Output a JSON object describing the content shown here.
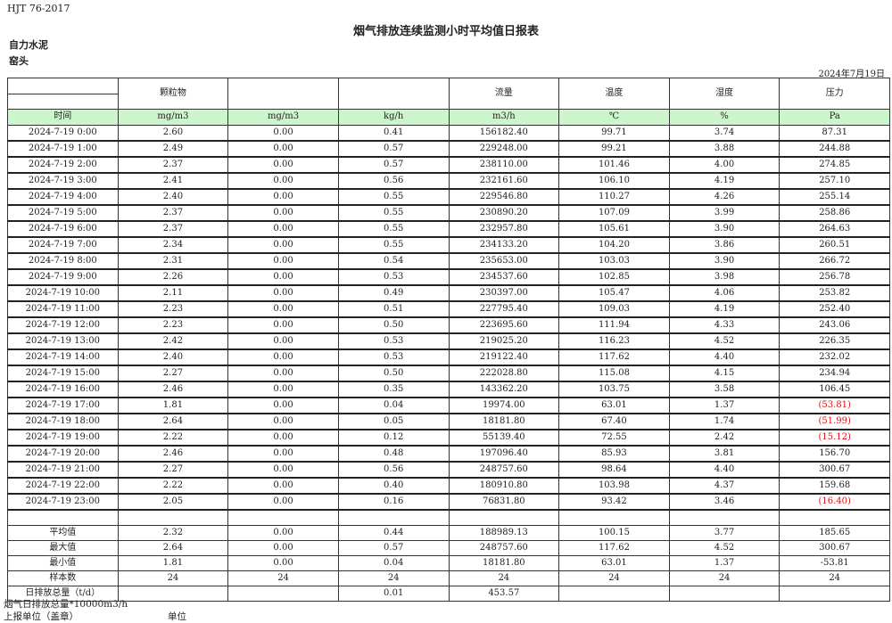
{
  "standard": "HJT  76-2017",
  "title": "烟气排放连续监测小时平均值日报表",
  "company": "自力水泥",
  "location": "窑头",
  "report_date": "2024年7月19日",
  "colors": {
    "unit_row_bg": "#ccf5cc",
    "negative": "#e01010"
  },
  "headers": [
    "",
    "颗粒物",
    "",
    "",
    "流量",
    "温度",
    "湿度",
    "压力"
  ],
  "units": [
    "时间",
    "mg/m3",
    "mg/m3",
    "kg/h",
    "m3/h",
    "℃",
    "%",
    "Pa"
  ],
  "rows": [
    [
      "2024-7-19 0:00",
      "2.60",
      "0.00",
      "0.41",
      "156182.40",
      "99.71",
      "3.74",
      "87.31"
    ],
    [
      "2024-7-19 1:00",
      "2.49",
      "0.00",
      "0.57",
      "229248.00",
      "99.21",
      "3.88",
      "244.88"
    ],
    [
      "2024-7-19 2:00",
      "2.37",
      "0.00",
      "0.57",
      "238110.00",
      "101.46",
      "4.00",
      "274.85"
    ],
    [
      "2024-7-19 3:00",
      "2.41",
      "0.00",
      "0.56",
      "232161.60",
      "106.10",
      "4.19",
      "257.10"
    ],
    [
      "2024-7-19 4:00",
      "2.40",
      "0.00",
      "0.55",
      "229546.80",
      "110.27",
      "4.26",
      "255.14"
    ],
    [
      "2024-7-19 5:00",
      "2.37",
      "0.00",
      "0.55",
      "230890.20",
      "107.09",
      "3.99",
      "258.86"
    ],
    [
      "2024-7-19 6:00",
      "2.37",
      "0.00",
      "0.55",
      "232957.80",
      "105.61",
      "3.90",
      "264.63"
    ],
    [
      "2024-7-19 7:00",
      "2.34",
      "0.00",
      "0.55",
      "234133.20",
      "104.20",
      "3.86",
      "260.51"
    ],
    [
      "2024-7-19 8:00",
      "2.31",
      "0.00",
      "0.54",
      "235653.00",
      "103.03",
      "3.90",
      "266.72"
    ],
    [
      "2024-7-19 9:00",
      "2.26",
      "0.00",
      "0.53",
      "234537.60",
      "102.85",
      "3.98",
      "256.78"
    ],
    [
      "2024-7-19 10:00",
      "2.11",
      "0.00",
      "0.49",
      "230397.00",
      "105.47",
      "4.06",
      "253.82"
    ],
    [
      "2024-7-19 11:00",
      "2.23",
      "0.00",
      "0.51",
      "227795.40",
      "109.03",
      "4.19",
      "252.40"
    ],
    [
      "2024-7-19 12:00",
      "2.23",
      "0.00",
      "0.50",
      "223695.60",
      "111.94",
      "4.33",
      "243.06"
    ],
    [
      "2024-7-19 13:00",
      "2.42",
      "0.00",
      "0.53",
      "219025.20",
      "116.23",
      "4.52",
      "226.35"
    ],
    [
      "2024-7-19 14:00",
      "2.40",
      "0.00",
      "0.53",
      "219122.40",
      "117.62",
      "4.40",
      "232.02"
    ],
    [
      "2024-7-19 15:00",
      "2.27",
      "0.00",
      "0.50",
      "222028.80",
      "115.08",
      "4.15",
      "234.94"
    ],
    [
      "2024-7-19 16:00",
      "2.46",
      "0.00",
      "0.35",
      "143362.20",
      "103.75",
      "3.58",
      "106.45"
    ],
    [
      "2024-7-19 17:00",
      "1.81",
      "0.00",
      "0.04",
      "19974.00",
      "63.01",
      "1.37",
      "(53.81)"
    ],
    [
      "2024-7-19 18:00",
      "2.64",
      "0.00",
      "0.05",
      "18181.80",
      "67.40",
      "1.74",
      "(51.99)"
    ],
    [
      "2024-7-19 19:00",
      "2.22",
      "0.00",
      "0.12",
      "55139.40",
      "72.55",
      "2.42",
      "(15.12)"
    ],
    [
      "2024-7-19 20:00",
      "2.46",
      "0.00",
      "0.48",
      "197096.40",
      "85.93",
      "3.81",
      "156.70"
    ],
    [
      "2024-7-19 21:00",
      "2.27",
      "0.00",
      "0.56",
      "248757.60",
      "98.64",
      "4.40",
      "300.67"
    ],
    [
      "2024-7-19 22:00",
      "2.22",
      "0.00",
      "0.40",
      "180910.80",
      "103.98",
      "4.37",
      "159.68"
    ],
    [
      "2024-7-19 23:00",
      "2.05",
      "0.00",
      "0.16",
      "76831.80",
      "93.42",
      "3.46",
      "(16.40)"
    ]
  ],
  "summary": [
    [
      "平均值",
      "2.32",
      "0.00",
      "0.44",
      "188989.13",
      "100.15",
      "3.77",
      "185.65"
    ],
    [
      "最大值",
      "2.64",
      "0.00",
      "0.57",
      "248757.60",
      "117.62",
      "4.52",
      "300.67"
    ],
    [
      "最小值",
      "1.81",
      "0.00",
      "0.04",
      "18181.80",
      "63.01",
      "1.37",
      "-53.81"
    ],
    [
      "样本数",
      "24",
      "24",
      "24",
      "24",
      "24",
      "24",
      "24"
    ],
    [
      "日排放总量（t/d）",
      "",
      "",
      "0.01",
      "453.57",
      "",
      "",
      ""
    ]
  ],
  "footer": {
    "flue_total": "烟气日排放总量*10000m3/h",
    "reporter": "上报单位（盖章）",
    "unit_label": "单位"
  }
}
